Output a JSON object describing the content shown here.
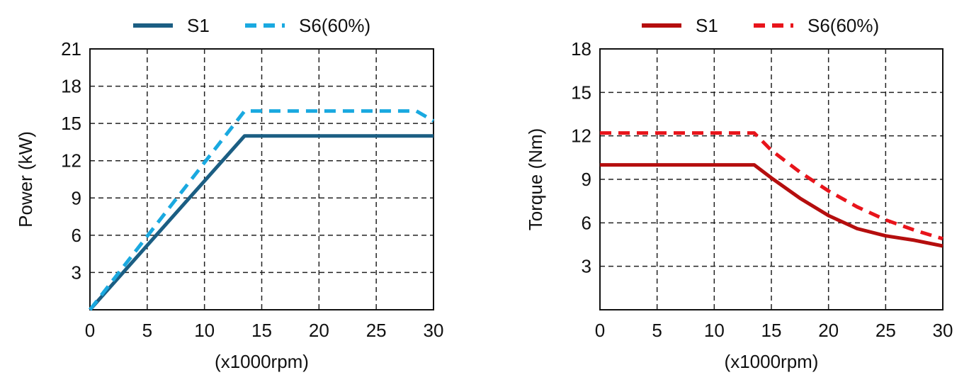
{
  "chart_data": [
    {
      "type": "line",
      "title": "",
      "xlabel": "(x1000rpm)",
      "ylabel": "Power (kW)",
      "xlim": [
        0,
        30
      ],
      "ylim": [
        0,
        21
      ],
      "xticks": [
        "0",
        "5",
        "10",
        "15",
        "20",
        "25",
        "30"
      ],
      "yticks": [
        "3",
        "6",
        "9",
        "12",
        "15",
        "18",
        "21"
      ],
      "grid": true,
      "legend_position": "top-center",
      "series": [
        {
          "name": "S1",
          "color": "#1b5e83",
          "style": "solid",
          "x": [
            0,
            13.5,
            30
          ],
          "y": [
            0,
            14,
            14
          ]
        },
        {
          "name": "S6(60%)",
          "color": "#1aa9e0",
          "style": "dashed",
          "x": [
            0,
            13.5,
            28.5,
            30
          ],
          "y": [
            0,
            16,
            16,
            15.2
          ]
        }
      ]
    },
    {
      "type": "line",
      "title": "",
      "xlabel": "(x1000rpm)",
      "ylabel": "Torque  (Nm)",
      "xlim": [
        0,
        30
      ],
      "ylim": [
        0,
        18
      ],
      "xticks": [
        "0",
        "5",
        "10",
        "15",
        "20",
        "25",
        "30"
      ],
      "yticks": [
        "3",
        "6",
        "9",
        "12",
        "15",
        "18"
      ],
      "grid": true,
      "legend_position": "top-center",
      "series": [
        {
          "name": "S1",
          "color": "#b50e0e",
          "style": "solid",
          "x": [
            0,
            13.5,
            15,
            17.5,
            20,
            22.5,
            25,
            27.5,
            30
          ],
          "y": [
            10,
            10,
            9.1,
            7.7,
            6.5,
            5.6,
            5.1,
            4.8,
            4.4
          ]
        },
        {
          "name": "S6(60%)",
          "color": "#e8141b",
          "style": "dashed",
          "x": [
            0,
            13.5,
            15,
            17.5,
            20,
            22.5,
            25,
            27.5,
            30
          ],
          "y": [
            12.2,
            12.2,
            11.0,
            9.5,
            8.2,
            7.1,
            6.2,
            5.5,
            4.9
          ]
        }
      ]
    }
  ]
}
